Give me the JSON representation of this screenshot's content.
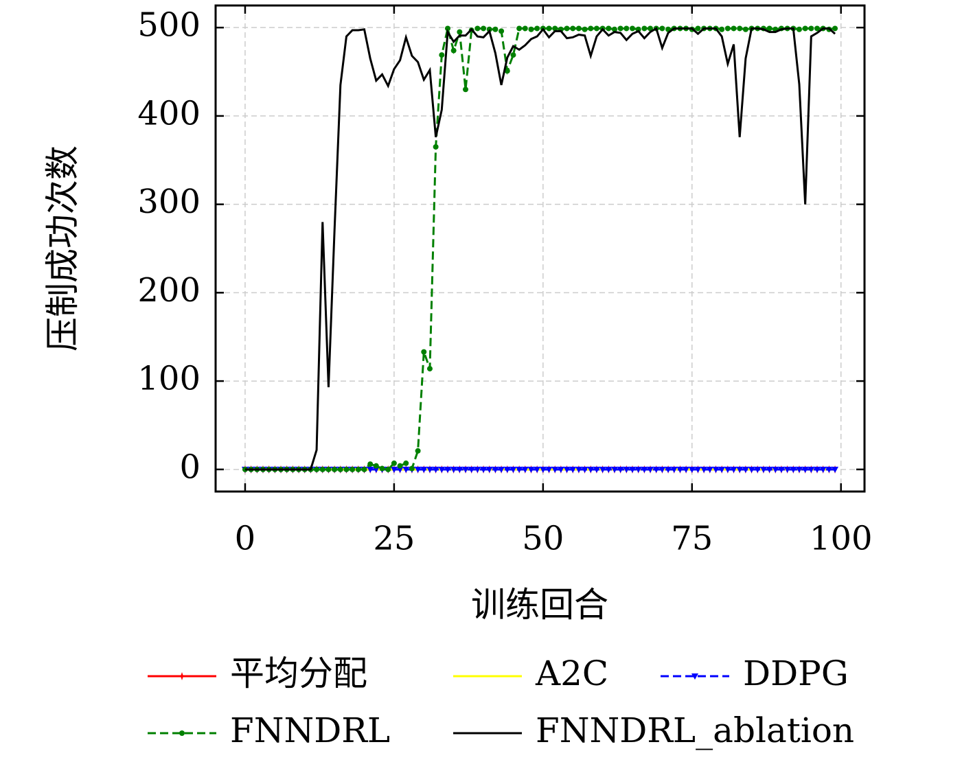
{
  "chart_data": {
    "type": "line",
    "xlabel": "训练回合",
    "ylabel": "压制成功次数",
    "x": [
      0,
      1,
      2,
      3,
      4,
      5,
      6,
      7,
      8,
      9,
      10,
      11,
      12,
      13,
      14,
      15,
      16,
      17,
      18,
      19,
      20,
      21,
      22,
      23,
      24,
      25,
      26,
      27,
      28,
      29,
      30,
      31,
      32,
      33,
      34,
      35,
      36,
      37,
      38,
      39,
      40,
      41,
      42,
      43,
      44,
      45,
      46,
      47,
      48,
      49,
      50,
      51,
      52,
      53,
      54,
      55,
      56,
      57,
      58,
      59,
      60,
      61,
      62,
      63,
      64,
      65,
      66,
      67,
      68,
      69,
      70,
      71,
      72,
      73,
      74,
      75,
      76,
      77,
      78,
      79,
      80,
      81,
      82,
      83,
      84,
      85,
      86,
      87,
      88,
      89,
      90,
      91,
      92,
      93,
      94,
      95,
      96,
      97,
      98,
      99
    ],
    "xlim": [
      -4.95,
      103.95
    ],
    "xticks": [
      0,
      25,
      50,
      75,
      100
    ],
    "ylim": [
      -25,
      525
    ],
    "yticks": [
      0,
      100,
      200,
      300,
      400,
      500
    ],
    "grid": true,
    "legend": "lower center",
    "series": [
      {
        "name": "平均分配",
        "color": "#ff0000",
        "dash": false,
        "marker": "vline",
        "values": [
          0,
          0,
          0,
          0,
          0,
          0,
          0,
          0,
          0,
          0,
          0,
          0,
          0,
          0,
          0,
          0,
          0,
          0,
          0,
          0,
          0,
          0,
          0,
          0,
          0,
          0,
          0,
          0,
          0,
          0,
          0,
          0,
          0,
          0,
          0,
          0,
          0,
          0,
          0,
          0,
          0,
          0,
          0,
          0,
          0,
          0,
          0,
          0,
          0,
          0,
          0,
          0,
          0,
          0,
          0,
          0,
          0,
          0,
          0,
          0,
          0,
          0,
          0,
          0,
          0,
          0,
          0,
          0,
          0,
          0,
          0,
          0,
          0,
          0,
          0,
          0,
          0,
          0,
          0,
          0,
          0,
          0,
          0,
          0,
          0,
          0,
          0,
          0,
          0,
          0,
          0,
          0,
          0,
          0,
          0,
          0,
          0,
          0,
          0,
          0
        ]
      },
      {
        "name": "A2C",
        "color": "#ffff00",
        "dash": false,
        "marker": null,
        "values": [
          0,
          0,
          0,
          0,
          0,
          0,
          0,
          0,
          0,
          0,
          0,
          0,
          0,
          0,
          0,
          0,
          0,
          0,
          0,
          0,
          0,
          0,
          0,
          0,
          0,
          0,
          0,
          0,
          0,
          0,
          0,
          0,
          0,
          0,
          0,
          0,
          0,
          0,
          0,
          0,
          0,
          0,
          0,
          0,
          0,
          0,
          0,
          0,
          0,
          0,
          0,
          0,
          0,
          0,
          0,
          0,
          0,
          0,
          0,
          0,
          0,
          0,
          0,
          0,
          0,
          0,
          0,
          0,
          0,
          0,
          0,
          0,
          0,
          0,
          0,
          0,
          0,
          0,
          0,
          0,
          0,
          0,
          0,
          0,
          0,
          0,
          0,
          0,
          0,
          0,
          0,
          0,
          0,
          0,
          0,
          0,
          0,
          0,
          0,
          0
        ]
      },
      {
        "name": "DDPG",
        "color": "#0000ff",
        "dash": true,
        "marker": "tri_down",
        "values": [
          0,
          0,
          0,
          0,
          0,
          0,
          0,
          0,
          0,
          0,
          0,
          0,
          0,
          0,
          0,
          0,
          0,
          0,
          0,
          0,
          0,
          0,
          0,
          0,
          0,
          0,
          0,
          0,
          0,
          0,
          0,
          0,
          0,
          0,
          0,
          0,
          0,
          0,
          0,
          0,
          0,
          0,
          0,
          0,
          0,
          0,
          0,
          0,
          0,
          0,
          0,
          0,
          0,
          0,
          0,
          0,
          0,
          0,
          0,
          0,
          0,
          0,
          0,
          0,
          0,
          0,
          0,
          0,
          0,
          0,
          0,
          0,
          0,
          0,
          0,
          0,
          0,
          0,
          0,
          0,
          0,
          0,
          0,
          0,
          0,
          0,
          0,
          0,
          0,
          0,
          0,
          0,
          0,
          0,
          0,
          0,
          0,
          0,
          0,
          0
        ]
      },
      {
        "name": "FNNDRL",
        "color": "#008000",
        "dash": true,
        "marker": "dot",
        "values": [
          0,
          0,
          0,
          0,
          0,
          0,
          0,
          0,
          0,
          0,
          0,
          0,
          0,
          0,
          0,
          0,
          0,
          0,
          0,
          0,
          0,
          6,
          4,
          1,
          0,
          7,
          4,
          7,
          1,
          21,
          133,
          114,
          365,
          469,
          499,
          474,
          495,
          430,
          497,
          499,
          499,
          498,
          498,
          496,
          451,
          469,
          499,
          499,
          498,
          499,
          499,
          499,
          499,
          498,
          499,
          499,
          499,
          498,
          499,
          499,
          499,
          499,
          498,
          499,
          499,
          499,
          498,
          499,
          499,
          499,
          499,
          498,
          499,
          499,
          499,
          498,
          499,
          499,
          499,
          499,
          498,
          499,
          499,
          499,
          498,
          499,
          499,
          499,
          499,
          498,
          499,
          499,
          499,
          498,
          499,
          499,
          499,
          499,
          498,
          499
        ]
      },
      {
        "name": "FNNDRL_ablation",
        "color": "#000000",
        "dash": false,
        "marker": null,
        "values": [
          0,
          0,
          0,
          0,
          0,
          0,
          0,
          0,
          0,
          0,
          0,
          0,
          22,
          280,
          93,
          270,
          435,
          490,
          497,
          497,
          498,
          465,
          440,
          447,
          434,
          453,
          463,
          489,
          468,
          461,
          441,
          452,
          376,
          407,
          495,
          484,
          491,
          491,
          498,
          490,
          489,
          496,
          471,
          435,
          466,
          479,
          475,
          480,
          487,
          490,
          498,
          489,
          496,
          496,
          488,
          489,
          492,
          491,
          468,
          490,
          498,
          491,
          495,
          494,
          486,
          493,
          496,
          488,
          495,
          499,
          477,
          494,
          499,
          499,
          499,
          499,
          493,
          499,
          499,
          499,
          490,
          459,
          481,
          376,
          465,
          499,
          499,
          498,
          495,
          495,
          498,
          499,
          499,
          436,
          300,
          490,
          494,
          499,
          499,
          493
        ]
      }
    ]
  }
}
